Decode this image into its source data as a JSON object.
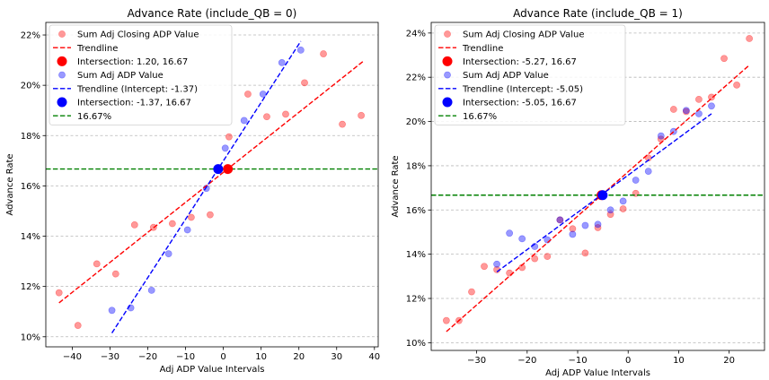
{
  "chart_data": [
    {
      "type": "scatter",
      "title": "Advance Rate (include_QB = 0)",
      "xlabel": "Adj ADP Value Intervals",
      "ylabel": "Advance Rate",
      "xlim": [
        -47,
        41
      ],
      "ylim": [
        0.096,
        0.225
      ],
      "xticks": [
        -40,
        -30,
        -20,
        -10,
        0,
        10,
        20,
        30,
        40
      ],
      "xtick_labels": [
        "−40",
        "−30",
        "−20",
        "−10",
        "0",
        "10",
        "20",
        "30",
        "40"
      ],
      "yticks": [
        0.1,
        0.12,
        0.14,
        0.16,
        0.18,
        0.2,
        0.22
      ],
      "ytick_labels": [
        "10%",
        "12%",
        "14%",
        "16%",
        "18%",
        "20%",
        "22%"
      ],
      "grid": "y",
      "legend_position": "top-left",
      "series": [
        {
          "name": "Sum Adj Closing ADP Value",
          "kind": "scatter",
          "color": "#ff0000",
          "points": [
            [
              -43.5,
              0.1175
            ],
            [
              -38.5,
              0.1045
            ],
            [
              -33.5,
              0.129
            ],
            [
              -28.5,
              0.125
            ],
            [
              -23.5,
              0.1445
            ],
            [
              -18.5,
              0.1435
            ],
            [
              -13.5,
              0.145
            ],
            [
              -8.5,
              0.1475
            ],
            [
              -3.5,
              0.1485
            ],
            [
              1.5,
              0.1795
            ],
            [
              6.5,
              0.1965
            ],
            [
              11.5,
              0.1875
            ],
            [
              16.5,
              0.1885
            ],
            [
              21.5,
              0.201
            ],
            [
              26.5,
              0.2125
            ],
            [
              31.5,
              0.1845
            ],
            [
              36.5,
              0.188
            ]
          ]
        },
        {
          "name": "Trendline",
          "kind": "line",
          "color": "#ff0000",
          "points": [
            [
              -43.5,
              0.1135
            ],
            [
              37.0,
              0.2095
            ]
          ]
        },
        {
          "name": "Intersection: 1.20, 16.67",
          "kind": "marker",
          "color": "#ff0000",
          "points": [
            [
              1.2,
              0.1667
            ]
          ]
        },
        {
          "name": "Sum Adj ADP Value",
          "kind": "scatter",
          "color": "#0000ff",
          "points": [
            [
              -29.5,
              0.1105
            ],
            [
              -24.5,
              0.1115
            ],
            [
              -19.0,
              0.1185
            ],
            [
              -14.5,
              0.133
            ],
            [
              -9.5,
              0.1425
            ],
            [
              -4.5,
              0.159
            ],
            [
              0.5,
              0.175
            ],
            [
              5.5,
              0.186
            ],
            [
              10.5,
              0.1965
            ],
            [
              15.5,
              0.209
            ],
            [
              20.5,
              0.214
            ]
          ]
        },
        {
          "name": "Trendline (Intercept: -1.37)",
          "kind": "line",
          "color": "#0000ff",
          "points": [
            [
              -29.5,
              0.1015
            ],
            [
              20.5,
              0.2175
            ]
          ]
        },
        {
          "name": "Intersection: -1.37, 16.67",
          "kind": "marker",
          "color": "#0000ff",
          "points": [
            [
              -1.37,
              0.1667
            ]
          ]
        },
        {
          "name": "16.67%",
          "kind": "hline",
          "color": "#008000",
          "y": 0.1667
        }
      ]
    },
    {
      "type": "scatter",
      "title": "Advance Rate (include_QB = 1)",
      "xlabel": "Adj ADP Value Intervals",
      "ylabel": "Advance Rate",
      "xlim": [
        -39,
        27
      ],
      "ylim": [
        0.0965,
        0.2448
      ],
      "xticks": [
        -30,
        -20,
        -10,
        0,
        10,
        20
      ],
      "xtick_labels": [
        "−30",
        "−20",
        "−10",
        "0",
        "10",
        "20"
      ],
      "yticks": [
        0.1,
        0.12,
        0.14,
        0.16,
        0.18,
        0.2,
        0.22,
        0.24
      ],
      "ytick_labels": [
        "10%",
        "12%",
        "14%",
        "16%",
        "18%",
        "20%",
        "22%",
        "24%"
      ],
      "grid": "y",
      "legend_position": "top-left",
      "series": [
        {
          "name": "Sum Adj Closing ADP Value",
          "kind": "scatter",
          "color": "#ff0000",
          "points": [
            [
              -36.0,
              0.11
            ],
            [
              -33.5,
              0.11
            ],
            [
              -31.0,
              0.123
            ],
            [
              -28.5,
              0.1345
            ],
            [
              -26.0,
              0.133
            ],
            [
              -23.5,
              0.1315
            ],
            [
              -21.0,
              0.134
            ],
            [
              -18.5,
              0.138
            ],
            [
              -16.0,
              0.139
            ],
            [
              -13.5,
              0.1555
            ],
            [
              -11.0,
              0.1515
            ],
            [
              -8.5,
              0.1405
            ],
            [
              -6.0,
              0.152
            ],
            [
              -3.5,
              0.158
            ],
            [
              -1.0,
              0.1605
            ],
            [
              1.5,
              0.1675
            ],
            [
              4.0,
              0.1835
            ],
            [
              6.5,
              0.192
            ],
            [
              9.0,
              0.2055
            ],
            [
              11.5,
              0.2045
            ],
            [
              14.0,
              0.21
            ],
            [
              16.5,
              0.211
            ],
            [
              19.0,
              0.2285
            ],
            [
              21.5,
              0.2165
            ],
            [
              24.0,
              0.2375
            ]
          ]
        },
        {
          "name": "Trendline",
          "kind": "line",
          "color": "#ff0000",
          "points": [
            [
              -36.0,
              0.105
            ],
            [
              24.0,
              0.2255
            ]
          ]
        },
        {
          "name": "Intersection: -5.27, 16.67",
          "kind": "marker",
          "color": "#ff0000",
          "points": [
            [
              -5.27,
              0.1667
            ]
          ]
        },
        {
          "name": "Sum Adj ADP Value",
          "kind": "scatter",
          "color": "#0000ff",
          "points": [
            [
              -26.0,
              0.1355
            ],
            [
              -23.5,
              0.1495
            ],
            [
              -21.0,
              0.147
            ],
            [
              -18.5,
              0.1435
            ],
            [
              -16.0,
              0.1465
            ],
            [
              -13.5,
              0.1555
            ],
            [
              -11.0,
              0.149
            ],
            [
              -8.5,
              0.153
            ],
            [
              -6.0,
              0.1535
            ],
            [
              -3.5,
              0.16
            ],
            [
              -1.0,
              0.164
            ],
            [
              1.5,
              0.1735
            ],
            [
              4.0,
              0.1775
            ],
            [
              6.5,
              0.1935
            ],
            [
              9.0,
              0.1955
            ],
            [
              11.5,
              0.205
            ],
            [
              14.0,
              0.2035
            ],
            [
              16.5,
              0.207
            ]
          ]
        },
        {
          "name": "Trendline (Intercept: -5.05)",
          "kind": "line",
          "color": "#0000ff",
          "points": [
            [
              -26.0,
              0.132
            ],
            [
              16.5,
              0.2035
            ]
          ]
        },
        {
          "name": "Intersection: -5.05, 16.67",
          "kind": "marker",
          "color": "#0000ff",
          "points": [
            [
              -5.05,
              0.1667
            ]
          ]
        },
        {
          "name": "16.67%",
          "kind": "hline",
          "color": "#008000",
          "y": 0.1667
        }
      ]
    }
  ]
}
